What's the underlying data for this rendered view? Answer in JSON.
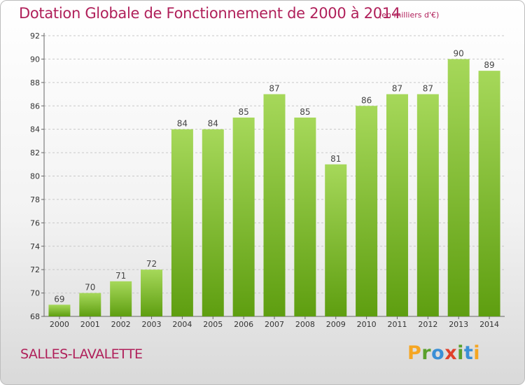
{
  "header": {
    "title": "Dotation Globale de Fonctionnement de 2000 à 2014",
    "subtitle": "(en milliers d'€)"
  },
  "footer": {
    "commune": "SALLES-LAVALETTE",
    "logo_letters": [
      "P",
      "r",
      "o",
      "x",
      "i",
      "t",
      "i"
    ]
  },
  "colors": {
    "title": "#b0205a",
    "bar_top": "#a6d85a",
    "bar_bottom": "#5e9e10",
    "grid": "#c8c8c8"
  },
  "chart_data": {
    "type": "bar",
    "categories": [
      "2000",
      "2001",
      "2002",
      "2003",
      "2004",
      "2005",
      "2006",
      "2007",
      "2008",
      "2009",
      "2010",
      "2011",
      "2012",
      "2013",
      "2014"
    ],
    "values": [
      69,
      70,
      71,
      72,
      84,
      84,
      85,
      87,
      85,
      81,
      86,
      87,
      87,
      90,
      89
    ],
    "ylim": [
      68,
      92
    ],
    "yticks": [
      68,
      70,
      72,
      74,
      76,
      78,
      80,
      82,
      84,
      86,
      88,
      90,
      92
    ],
    "grid": "horizontal dashed",
    "data_labels": true
  }
}
